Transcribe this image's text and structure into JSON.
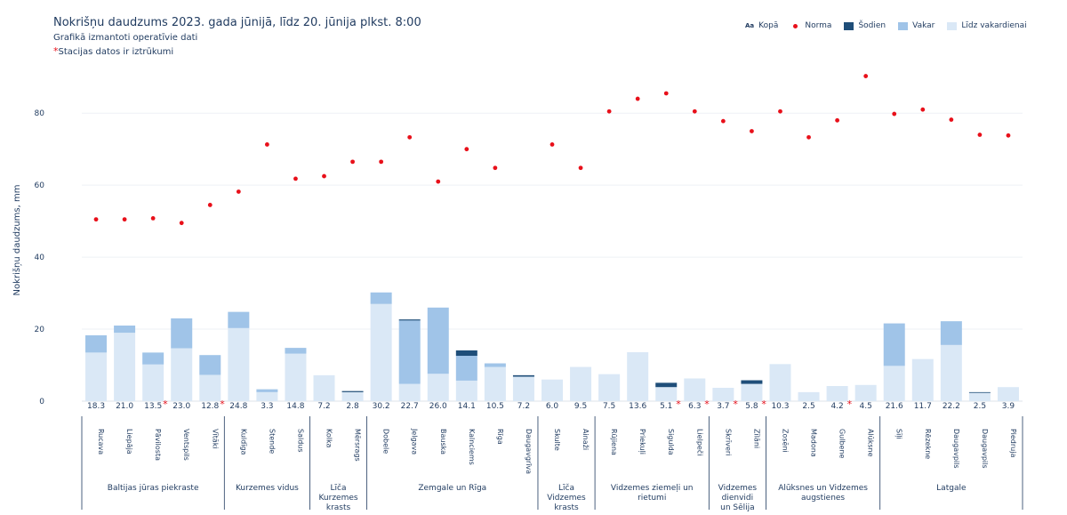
{
  "header": {
    "title": "Nokrišņu daudzums 2023. gada jūnijā, līdz 20. jūnija plkst. 8:00",
    "subtitle": "Grafikā izmantoti operatīvie dati",
    "note_star": "*",
    "note_text": "Stacijas datos ir iztrūkumi"
  },
  "legend": [
    {
      "label": "Kopā",
      "symbol": "Aa"
    },
    {
      "label": "Norma",
      "color": "#e8101a"
    },
    {
      "label": "Šodien",
      "color": "#1f4e79"
    },
    {
      "label": "Vakar",
      "color": "#a0c4e8"
    },
    {
      "label": "Līdz vakardienai",
      "color": "#dae8f6"
    }
  ],
  "chart_data": {
    "type": "bar",
    "stacked": true,
    "ylabel": "Nokrišņu daudzums, mm",
    "ylim": [
      0,
      95
    ],
    "yticks": [
      0,
      20,
      40,
      60,
      80
    ],
    "grid": true,
    "legend_position": "top-right",
    "colors": {
      "until_yesterday": "#dae8f6",
      "yesterday": "#a0c4e8",
      "today": "#1f4e79",
      "norm": "#e8101a",
      "star": "#e8101a"
    },
    "stations": [
      {
        "name": "Rucava",
        "total": "18.3",
        "until_yesterday": 13.5,
        "yesterday": 4.8,
        "today": 0,
        "norm": 50.5,
        "missing": false
      },
      {
        "name": "Liepāja",
        "total": "21.0",
        "until_yesterday": 19.0,
        "yesterday": 2.0,
        "today": 0,
        "norm": 50.5,
        "missing": false
      },
      {
        "name": "Pāvilosta",
        "total": "13.5",
        "until_yesterday": 10.2,
        "yesterday": 3.3,
        "today": 0,
        "norm": 50.8,
        "missing": true
      },
      {
        "name": "Ventspils",
        "total": "23.0",
        "until_yesterday": 14.7,
        "yesterday": 8.3,
        "today": 0,
        "norm": 49.5,
        "missing": false
      },
      {
        "name": "Vītāki",
        "total": "12.8",
        "until_yesterday": 7.3,
        "yesterday": 5.5,
        "today": 0,
        "norm": 54.5,
        "missing": true
      },
      {
        "name": "Kuldīga",
        "total": "24.8",
        "until_yesterday": 20.3,
        "yesterday": 4.5,
        "today": 0,
        "norm": 58.2,
        "missing": false
      },
      {
        "name": "Stende",
        "total": "3.3",
        "until_yesterday": 2.5,
        "yesterday": 0.8,
        "today": 0,
        "norm": 71.3,
        "missing": false
      },
      {
        "name": "Saldus",
        "total": "14.8",
        "until_yesterday": 13.2,
        "yesterday": 1.6,
        "today": 0,
        "norm": 61.8,
        "missing": false
      },
      {
        "name": "Kolka",
        "total": "7.2",
        "until_yesterday": 7.2,
        "yesterday": 0,
        "today": 0,
        "norm": 62.5,
        "missing": false
      },
      {
        "name": "Mērsrags",
        "total": "2.8",
        "until_yesterday": 2.5,
        "yesterday": 0,
        "today": 0.3,
        "norm": 66.5,
        "missing": false
      },
      {
        "name": "Dobele",
        "total": "30.2",
        "until_yesterday": 27.0,
        "yesterday": 3.2,
        "today": 0,
        "norm": 66.5,
        "missing": false
      },
      {
        "name": "Jelgava",
        "total": "22.7",
        "until_yesterday": 4.8,
        "yesterday": 17.6,
        "today": 0.3,
        "norm": 73.3,
        "missing": false
      },
      {
        "name": "Bauska",
        "total": "26.0",
        "until_yesterday": 7.6,
        "yesterday": 18.4,
        "today": 0,
        "norm": 61.0,
        "missing": false
      },
      {
        "name": "Kalnciems",
        "total": "14.1",
        "until_yesterday": 5.7,
        "yesterday": 6.9,
        "today": 1.5,
        "norm": 70.0,
        "missing": false
      },
      {
        "name": "Rīga",
        "total": "10.5",
        "until_yesterday": 9.5,
        "yesterday": 1.0,
        "today": 0,
        "norm": 64.8,
        "missing": false
      },
      {
        "name": "Daugavgrīva",
        "total": "7.2",
        "until_yesterday": 6.8,
        "yesterday": 0,
        "today": 0.4,
        "norm": 0,
        "missing": false
      },
      {
        "name": "Skulte",
        "total": "6.0",
        "until_yesterday": 6.0,
        "yesterday": 0,
        "today": 0,
        "norm": 71.3,
        "missing": false
      },
      {
        "name": "Ainaži",
        "total": "9.5",
        "until_yesterday": 9.5,
        "yesterday": 0,
        "today": 0,
        "norm": 64.8,
        "missing": false
      },
      {
        "name": "Rūjiena",
        "total": "7.5",
        "until_yesterday": 7.5,
        "yesterday": 0,
        "today": 0,
        "norm": 80.5,
        "missing": false
      },
      {
        "name": "Priekuļi",
        "total": "13.6",
        "until_yesterday": 13.6,
        "yesterday": 0,
        "today": 0,
        "norm": 84.0,
        "missing": false
      },
      {
        "name": "Sigulda",
        "total": "5.1",
        "until_yesterday": 3.9,
        "yesterday": 0,
        "today": 1.2,
        "norm": 85.5,
        "missing": true
      },
      {
        "name": "Lielpeči",
        "total": "6.3",
        "until_yesterday": 6.3,
        "yesterday": 0,
        "today": 0,
        "norm": 80.5,
        "missing": true
      },
      {
        "name": "Skrīveri",
        "total": "3.7",
        "until_yesterday": 3.7,
        "yesterday": 0,
        "today": 0,
        "norm": 77.8,
        "missing": true
      },
      {
        "name": "Zīlāni",
        "total": "5.8",
        "until_yesterday": 4.8,
        "yesterday": 0,
        "today": 1.0,
        "norm": 75.0,
        "missing": true
      },
      {
        "name": "Zosēni",
        "total": "10.3",
        "until_yesterday": 10.3,
        "yesterday": 0,
        "today": 0,
        "norm": 80.5,
        "missing": false
      },
      {
        "name": "Madona",
        "total": "2.5",
        "until_yesterday": 2.5,
        "yesterday": 0,
        "today": 0,
        "norm": 73.3,
        "missing": false
      },
      {
        "name": "Gulbene",
        "total": "4.2",
        "until_yesterday": 4.2,
        "yesterday": 0,
        "today": 0,
        "norm": 78.0,
        "missing": true
      },
      {
        "name": "Alūksne",
        "total": "4.5",
        "until_yesterday": 4.5,
        "yesterday": 0,
        "today": 0,
        "norm": 90.3,
        "missing": false
      },
      {
        "name": "Sīļi",
        "total": "21.6",
        "until_yesterday": 9.8,
        "yesterday": 11.8,
        "today": 0,
        "norm": 79.8,
        "missing": false
      },
      {
        "name": "Rēzekne",
        "total": "11.7",
        "until_yesterday": 11.7,
        "yesterday": 0,
        "today": 0,
        "norm": 81.0,
        "missing": false
      },
      {
        "name": "Daugavpils",
        "total": "22.2",
        "until_yesterday": 15.6,
        "yesterday": 6.6,
        "today": 0,
        "norm": 78.2,
        "missing": false
      },
      {
        "name": "Daugavpils",
        "total": "2.5",
        "until_yesterday": 2.3,
        "yesterday": 0,
        "today": 0.2,
        "norm": 74.0,
        "missing": false
      },
      {
        "name": "Piedruja",
        "total": "3.9",
        "until_yesterday": 3.9,
        "yesterday": 0,
        "today": 0,
        "norm": 73.8,
        "missing": false
      }
    ],
    "groups": [
      {
        "name": "Baltijas jūras piekraste",
        "start": 0,
        "end": 4
      },
      {
        "name": "Kurzemes vidus",
        "start": 5,
        "end": 7
      },
      {
        "name": "Līča Kurzemes krasts",
        "start": 8,
        "end": 9
      },
      {
        "name": "Zemgale un Rīga",
        "start": 10,
        "end": 15
      },
      {
        "name": "Līča Vidzemes krasts",
        "start": 16,
        "end": 17
      },
      {
        "name": "Vidzemes ziemeļi un rietumi",
        "start": 18,
        "end": 21
      },
      {
        "name": "Vidzemes dienvidi un Sēlija",
        "start": 22,
        "end": 23
      },
      {
        "name": "Alūksnes un Vidzemes augstienes",
        "start": 24,
        "end": 27
      },
      {
        "name": "Latgale",
        "start": 28,
        "end": 32
      }
    ]
  }
}
